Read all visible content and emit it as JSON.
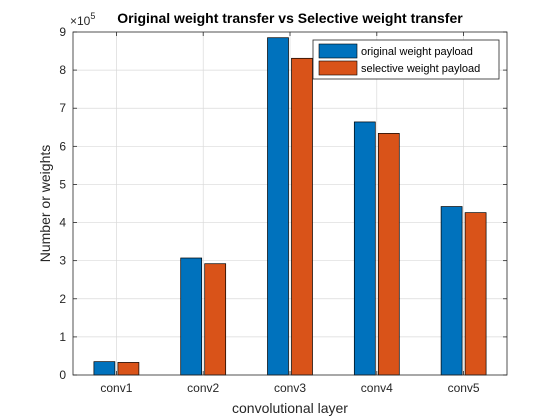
{
  "chart_data": {
    "type": "bar",
    "title": "Original weight transfer vs Selective weight transfer",
    "xlabel": "convolutional layer",
    "ylabel": "Number or weights",
    "y_exponent_base": "×10",
    "y_exponent_power": "5",
    "categories": [
      "conv1",
      "conv2",
      "conv3",
      "conv4",
      "conv5"
    ],
    "ylim": [
      0,
      9
    ],
    "yticks": [
      "0",
      "1",
      "2",
      "3",
      "4",
      "5",
      "6",
      "7",
      "8",
      "9"
    ],
    "grid": true,
    "legend_position": "top-right",
    "series": [
      {
        "name": "original weight payload",
        "color": "#0072BD",
        "values": [
          0.35,
          3.07,
          8.85,
          6.64,
          4.42
        ]
      },
      {
        "name": "selective weight payload",
        "color": "#D95319",
        "values": [
          0.33,
          2.92,
          8.31,
          6.34,
          4.26
        ]
      }
    ]
  }
}
